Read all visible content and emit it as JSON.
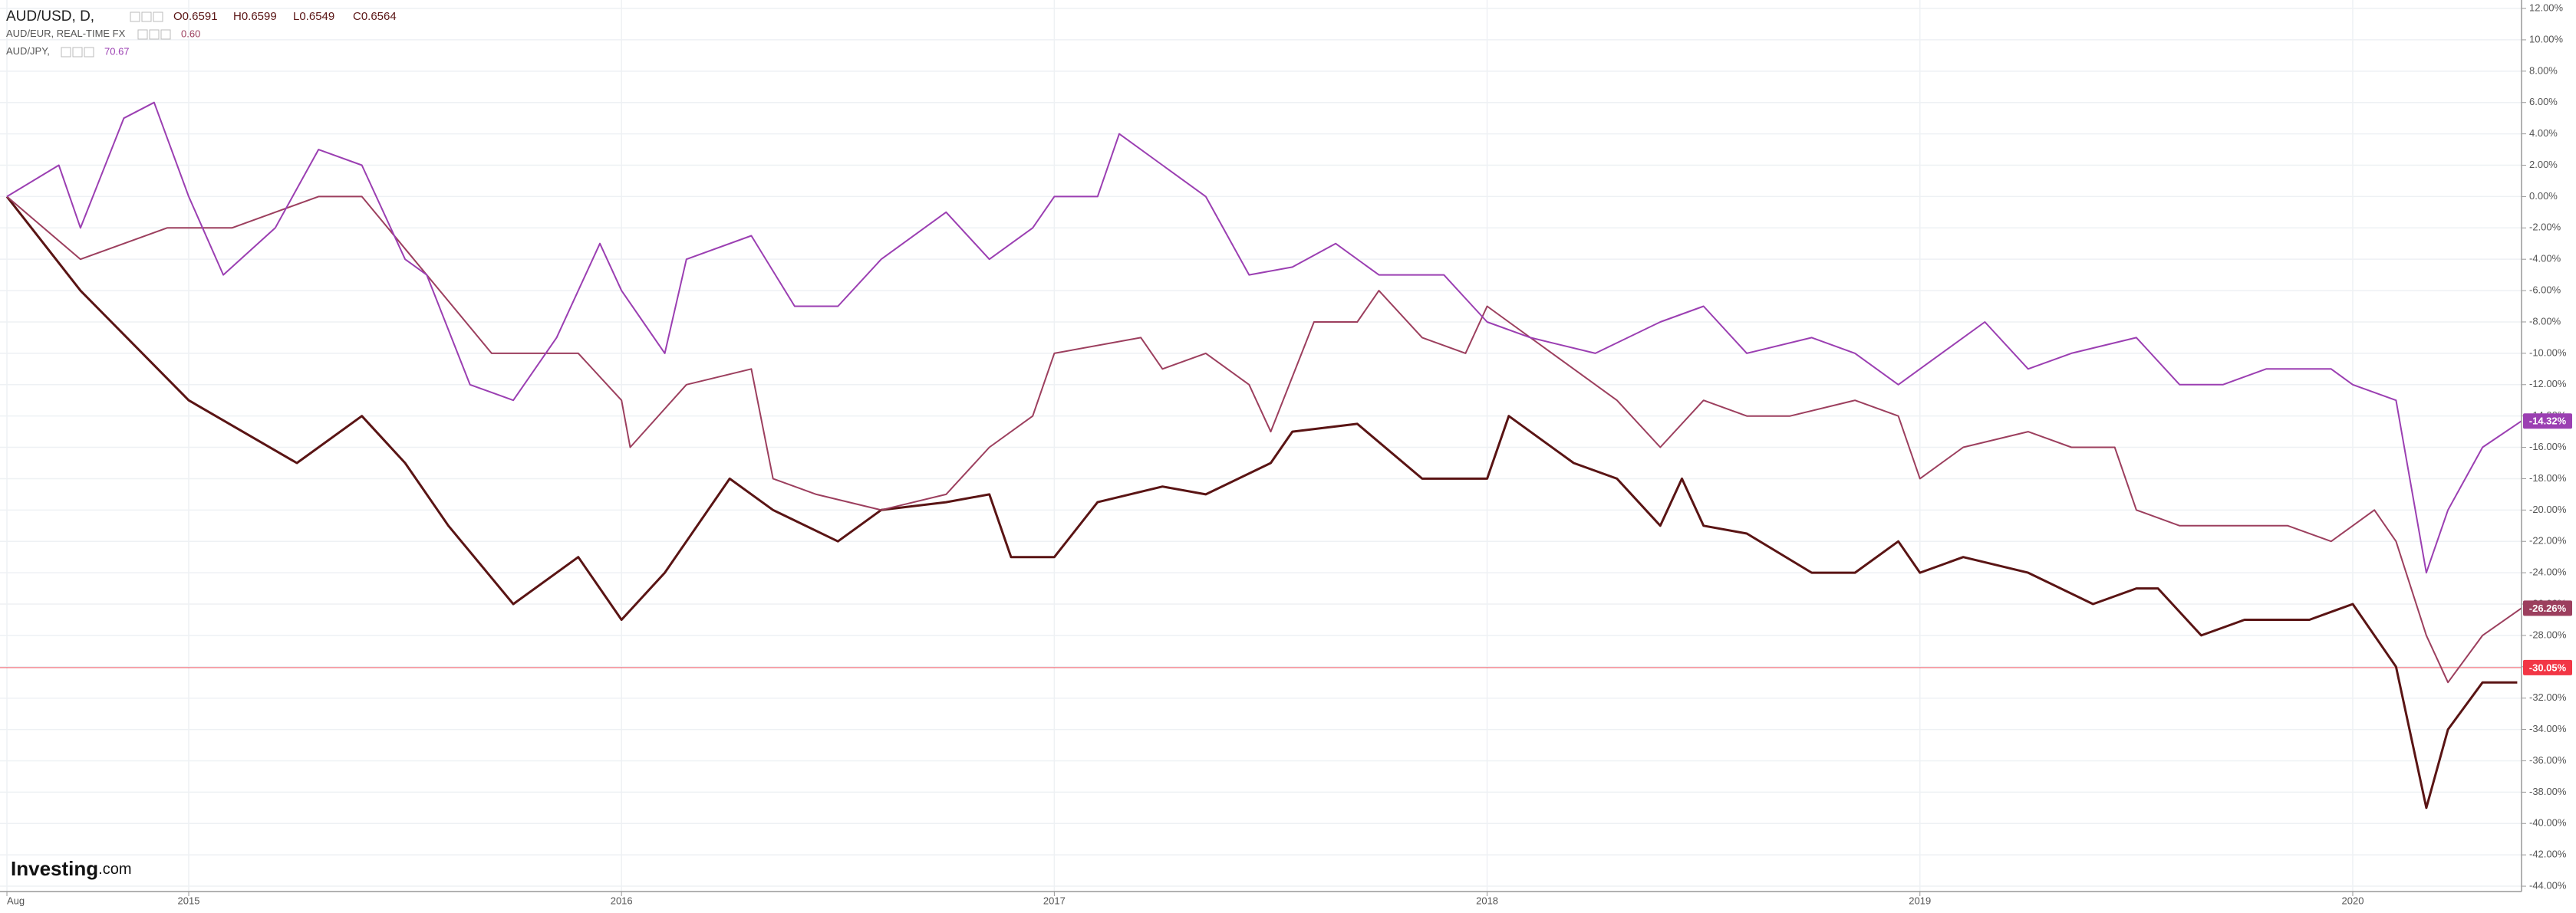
{
  "chart_data": {
    "type": "line",
    "xlim": [
      2014.564,
      2020.39
    ],
    "ylim": [
      -44.34,
      12.54
    ],
    "grid": true,
    "xticks": [
      {
        "value": 2014.58,
        "label": "Aug"
      },
      2015,
      2016,
      2017,
      2018,
      2019,
      2020
    ],
    "yticks": [
      {
        "value": 12,
        "label": "12.00%"
      },
      {
        "value": 10,
        "label": "10.00%"
      },
      {
        "value": 8,
        "label": "8.00%"
      },
      {
        "value": 6,
        "label": "6.00%"
      },
      {
        "value": 4,
        "label": "4.00%"
      },
      {
        "value": 2,
        "label": "2.00%"
      },
      {
        "value": 0,
        "label": "0.00%"
      },
      {
        "value": -2,
        "label": "-2.00%"
      },
      {
        "value": -4,
        "label": "-4.00%"
      },
      {
        "value": -6,
        "label": "-6.00%"
      },
      {
        "value": -8,
        "label": "-8.00%"
      },
      {
        "value": -10,
        "label": "-10.00%"
      },
      {
        "value": -12,
        "label": "-12.00%"
      },
      {
        "value": -14,
        "label": "-14.00%"
      },
      {
        "value": -16,
        "label": "-16.00%"
      },
      {
        "value": -18,
        "label": "-18.00%"
      },
      {
        "value": -20,
        "label": "-20.00%"
      },
      {
        "value": -22,
        "label": "-22.00%"
      },
      {
        "value": -24,
        "label": "-24.00%"
      },
      {
        "value": -26,
        "label": "-26.00%"
      },
      {
        "value": -28,
        "label": "-28.00%"
      },
      {
        "value": -30,
        "label": "-30.00%"
      },
      {
        "value": -32,
        "label": "-32.00%"
      },
      {
        "value": -34,
        "label": "-34.00%"
      },
      {
        "value": -36,
        "label": "-36.00%"
      },
      {
        "value": -38,
        "label": "-38.00%"
      },
      {
        "value": -40,
        "label": "-40.00%"
      },
      {
        "value": -42,
        "label": "-42.00%"
      },
      {
        "value": -44,
        "label": "-44.00%"
      }
    ],
    "price_line": {
      "value": -30.05,
      "label": "-30.05%",
      "color": "#f23645"
    },
    "watermark": {
      "brand": "Investing",
      "suffix": ".com"
    },
    "series": [
      {
        "name": "AUD/USD, D,",
        "color": "#5a1414",
        "ohlc": [
          {
            "value": 0.6591,
            "label": "O0.6591"
          },
          {
            "value": 0.6599,
            "label": "H0.6599"
          },
          {
            "value": 0.6549,
            "label": "L0.6549"
          },
          {
            "value": 0.6564,
            "label": "C0.6564"
          }
        ],
        "x": [
          2014.58,
          2014.75,
          2015.0,
          2015.25,
          2015.4,
          2015.5,
          2015.6,
          2015.75,
          2015.9,
          2016.0,
          2016.1,
          2016.25,
          2016.35,
          2016.5,
          2016.6,
          2016.75,
          2016.85,
          2016.9,
          2017.0,
          2017.1,
          2017.25,
          2017.35,
          2017.5,
          2017.55,
          2017.7,
          2017.85,
          2018.0,
          2018.05,
          2018.2,
          2018.3,
          2018.4,
          2018.45,
          2018.5,
          2018.6,
          2018.75,
          2018.85,
          2018.95,
          2019.0,
          2019.1,
          2019.25,
          2019.4,
          2019.5,
          2019.55,
          2019.65,
          2019.75,
          2019.9,
          2020.0,
          2020.1,
          2020.17,
          2020.22,
          2020.3,
          2020.38
        ],
        "values": [
          0,
          -6,
          -13,
          -17,
          -14,
          -17,
          -21,
          -26,
          -23,
          -27,
          -24,
          -18,
          -20,
          -22,
          -20,
          -19.5,
          -19,
          -23,
          -23,
          -19.5,
          -18.5,
          -19,
          -17,
          -15,
          -14.5,
          -18,
          -18,
          -14,
          -17,
          -18,
          -21,
          -18,
          -21,
          -21.5,
          -24,
          -24,
          -22,
          -24,
          -23,
          -24,
          -26,
          -25,
          -25,
          -28,
          -27,
          -27,
          -26,
          -30,
          -39,
          -34,
          -31,
          -31
        ]
      },
      {
        "name": "AUD/EUR, REAL-TIME FX",
        "color": "#9c3f5e",
        "last_price": {
          "value": 0.6,
          "label": "0.60"
        },
        "last_label": "-26.26%",
        "x": [
          2014.58,
          2014.75,
          2014.95,
          2015.1,
          2015.3,
          2015.4,
          2015.55,
          2015.7,
          2015.9,
          2016.0,
          2016.02,
          2016.15,
          2016.3,
          2016.35,
          2016.45,
          2016.6,
          2016.75,
          2016.85,
          2016.95,
          2017.0,
          2017.2,
          2017.25,
          2017.35,
          2017.45,
          2017.5,
          2017.6,
          2017.7,
          2017.75,
          2017.85,
          2017.95,
          2018.0,
          2018.05,
          2018.2,
          2018.3,
          2018.4,
          2018.5,
          2018.6,
          2018.7,
          2018.85,
          2018.95,
          2019.0,
          2019.1,
          2019.25,
          2019.35,
          2019.45,
          2019.5,
          2019.6,
          2019.75,
          2019.85,
          2019.95,
          2020.0,
          2020.05,
          2020.1,
          2020.17,
          2020.22,
          2020.3,
          2020.39
        ],
        "values": [
          0,
          -4,
          -2,
          -2,
          0,
          0,
          -5,
          -10,
          -10,
          -13,
          -16,
          -12,
          -11,
          -18,
          -19,
          -20,
          -19,
          -16,
          -14,
          -10,
          -9,
          -11,
          -10,
          -12,
          -15,
          -8,
          -8,
          -6,
          -9,
          -10,
          -7,
          -8,
          -11,
          -13,
          -16,
          -13,
          -14,
          -14,
          -13,
          -14,
          -18,
          -16,
          -15,
          -16,
          -16,
          -20,
          -21,
          -21,
          -21,
          -22,
          -21,
          -20,
          -22,
          -28,
          -31,
          -28,
          -26.26
        ]
      },
      {
        "name": "AUD/JPY,",
        "color": "#9b3fb2",
        "last_price": 70.67,
        "last_label": "-14.32%",
        "x": [
          2014.58,
          2014.7,
          2014.75,
          2014.85,
          2014.92,
          2015.0,
          2015.08,
          2015.2,
          2015.3,
          2015.4,
          2015.5,
          2015.55,
          2015.65,
          2015.75,
          2015.85,
          2015.95,
          2016.0,
          2016.05,
          2016.1,
          2016.15,
          2016.3,
          2016.4,
          2016.5,
          2016.6,
          2016.75,
          2016.85,
          2016.95,
          2017.0,
          2017.1,
          2017.15,
          2017.25,
          2017.35,
          2017.45,
          2017.55,
          2017.65,
          2017.75,
          2017.9,
          2018.0,
          2018.1,
          2018.25,
          2018.4,
          2018.5,
          2018.6,
          2018.75,
          2018.85,
          2018.95,
          2019.0,
          2019.15,
          2019.25,
          2019.35,
          2019.5,
          2019.6,
          2019.7,
          2019.8,
          2019.95,
          2020.0,
          2020.1,
          2020.17,
          2020.22,
          2020.3,
          2020.39
        ],
        "values": [
          0,
          2,
          -2,
          5,
          6,
          0,
          -5,
          -2,
          3,
          2,
          -4,
          -5,
          -12,
          -13,
          -9,
          -3,
          -6,
          -8,
          -10,
          -4,
          -2.5,
          -7,
          -7,
          -4,
          -1,
          -4,
          -2,
          0,
          0,
          4,
          2,
          0,
          -5,
          -4.5,
          -3,
          -5,
          -5,
          -8,
          -9,
          -10,
          -8,
          -7,
          -10,
          -9,
          -10,
          -12,
          -11,
          -8,
          -11,
          -10,
          -9,
          -12,
          -12,
          -11,
          -11,
          -12,
          -13,
          -24,
          -20,
          -16,
          -14.32
        ]
      }
    ]
  }
}
